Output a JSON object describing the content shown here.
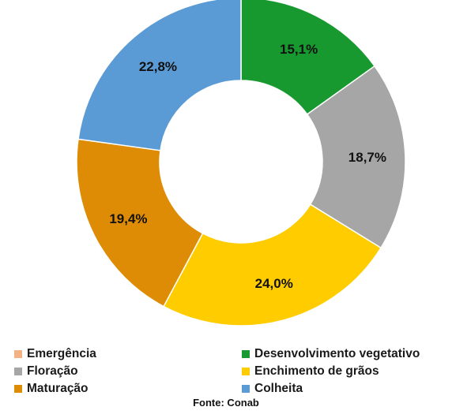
{
  "chart_data": {
    "type": "pie",
    "donut": true,
    "start_angle_deg": 0,
    "direction": "clockwise",
    "categories": [
      "Emergência",
      "Desenvolvimento vegetativo",
      "Floração",
      "Enchimento de grãos",
      "Maturação",
      "Colheita"
    ],
    "values": [
      0,
      15.1,
      18.7,
      24.0,
      19.4,
      22.8
    ],
    "data_labels": [
      "",
      "15,1%",
      "18,7%",
      "24,0%",
      "19,4%",
      "22,8%"
    ],
    "colors": [
      "#f4b183",
      "#17992f",
      "#a6a6a6",
      "#ffcc00",
      "#de8c05",
      "#5b9bd5"
    ],
    "legend_placement": "bottom",
    "legend": [
      {
        "label": "Emergência",
        "color": "#f4b183"
      },
      {
        "label": "Desenvolvimento vegetativo",
        "color": "#17992f"
      },
      {
        "label": "Floração",
        "color": "#a6a6a6"
      },
      {
        "label": "Enchimento de grãos",
        "color": "#ffcc00"
      },
      {
        "label": "Maturação",
        "color": "#de8c05"
      },
      {
        "label": "Colheita",
        "color": "#5b9bd5"
      }
    ]
  },
  "source": "Fonte: Conab"
}
